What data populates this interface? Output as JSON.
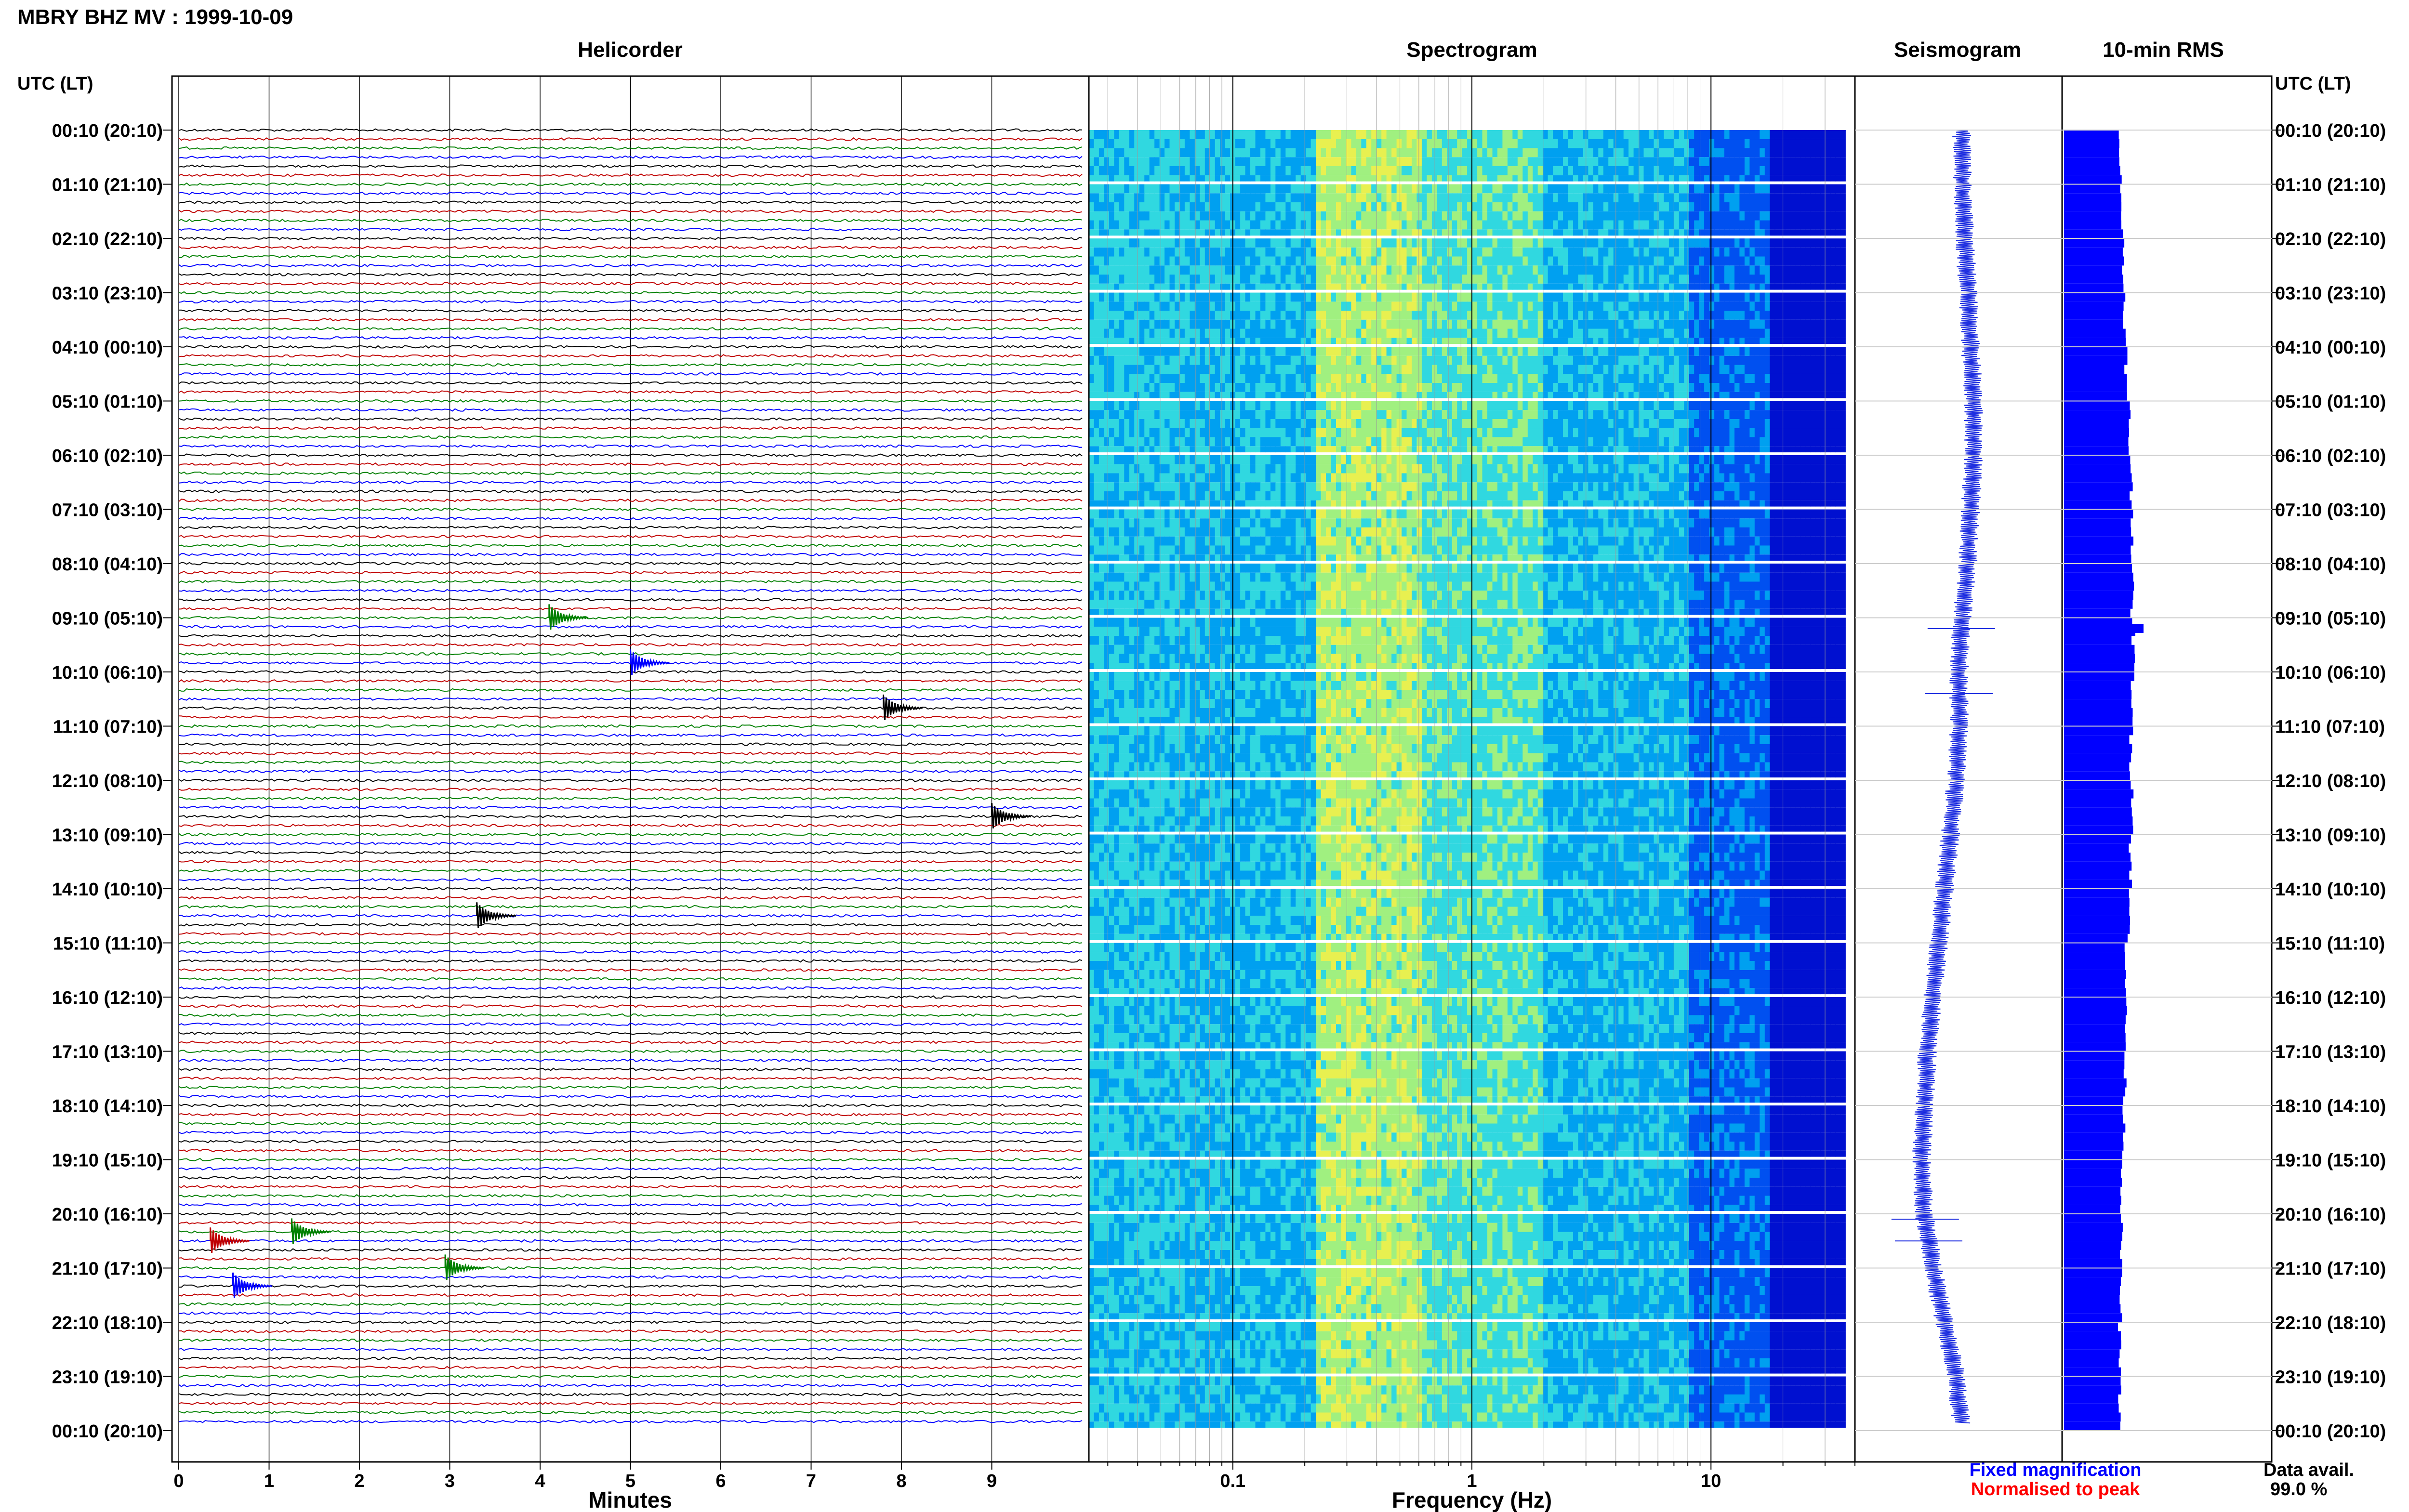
{
  "header": {
    "title": "MBRY BHZ MV : 1999-10-09",
    "left_axis_label": "UTC (LT)",
    "right_axis_label": "UTC (LT)"
  },
  "panels": {
    "helicorder": "Helicorder",
    "spectrogram": "Spectrogram",
    "seismogram": "Seismogram",
    "rms": "10-min RMS"
  },
  "time_labels": [
    "00:10 (20:10)",
    "01:10 (21:10)",
    "02:10 (22:10)",
    "03:10 (23:10)",
    "04:10 (00:10)",
    "05:10 (01:10)",
    "06:10 (02:10)",
    "07:10 (03:10)",
    "08:10 (04:10)",
    "09:10 (05:10)",
    "10:10 (06:10)",
    "11:10 (07:10)",
    "12:10 (08:10)",
    "13:10 (09:10)",
    "14:10 (10:10)",
    "15:10 (11:10)",
    "16:10 (12:10)",
    "17:10 (13:10)",
    "18:10 (14:10)",
    "19:10 (15:10)",
    "20:10 (16:10)",
    "21:10 (17:10)",
    "22:10 (18:10)",
    "23:10 (19:10)",
    "00:10 (20:10)"
  ],
  "footer": {
    "fixed_magnification": "Fixed magnification",
    "normalised": "Normalised to peak",
    "data_avail_label": "Data avail.",
    "data_avail_value": "99.0 %"
  },
  "colors": {
    "trace_cycle": [
      "#000000",
      "#c00000",
      "#008000",
      "#0000ff"
    ],
    "seismogram": "#1f2fe0",
    "rms": "#0000ff",
    "fixed_magnification": "#0000ff",
    "normalised": "#ff0000"
  },
  "chart_data": [
    {
      "type": "line",
      "name": "helicorder",
      "title": "Helicorder",
      "xlabel": "Minutes",
      "x_ticks": [
        "0",
        "1",
        "2",
        "3",
        "4",
        "5",
        "6",
        "7",
        "8",
        "9"
      ],
      "xlim": [
        0,
        10
      ],
      "rows": 144,
      "row_minutes": 10,
      "events": [
        {
          "row": 54,
          "minute": 4.1,
          "color_index": 2
        },
        {
          "row": 59,
          "minute": 5.0,
          "color_index": 3
        },
        {
          "row": 64,
          "minute": 7.8,
          "color_index": 0
        },
        {
          "row": 123,
          "minute": 0.35,
          "color_index": 1
        },
        {
          "row": 122,
          "minute": 1.25,
          "color_index": 2
        },
        {
          "row": 126,
          "minute": 2.95,
          "color_index": 2
        },
        {
          "row": 128,
          "minute": 0.6,
          "color_index": 3
        },
        {
          "row": 76,
          "minute": 9.0,
          "color_index": 0
        },
        {
          "row": 87,
          "minute": 3.3,
          "color_index": 0
        }
      ]
    },
    {
      "type": "heatmap",
      "name": "spectrogram",
      "title": "Spectrogram",
      "xlabel": "Frequency (Hz)",
      "x_scale": "log",
      "xlim": [
        0.025,
        40
      ],
      "x_ticks": [
        "0.1",
        "1",
        "10"
      ],
      "color_scale": [
        "#00008b",
        "#0010d0",
        "#0050f0",
        "#00a0f0",
        "#30d8e0",
        "#a0f080",
        "#e8f050"
      ],
      "gaps_every_rows": 6
    },
    {
      "type": "line",
      "name": "seismogram",
      "title": "Seismogram",
      "samples_per_hour": 1,
      "relative_offset": [
        0.0,
        0.0,
        0.1,
        0.2,
        0.3,
        0.4,
        0.4,
        0.3,
        0.2,
        0.0,
        -0.1,
        -0.1,
        -0.2,
        -0.4,
        -0.6,
        -0.8,
        -1.0,
        -1.2,
        -1.3,
        -1.4,
        -1.3,
        -1.0,
        -0.6,
        -0.2,
        0.0
      ],
      "spikes_at_hours": [
        9.2,
        10.4,
        20.1,
        20.5
      ]
    },
    {
      "type": "bar",
      "name": "10-min RMS",
      "title": "10-min RMS",
      "orientation": "horizontal",
      "relative_values": [
        0.78,
        0.8,
        0.82,
        0.84,
        0.86,
        0.9,
        0.93,
        0.95,
        0.94,
        0.96,
        0.95,
        0.93,
        0.95,
        0.92,
        0.9,
        0.86,
        0.85,
        0.84,
        0.83,
        0.8,
        0.79,
        0.78,
        0.77,
        0.77
      ],
      "peak_hour": 9.2,
      "peak_value": 1.1
    }
  ]
}
